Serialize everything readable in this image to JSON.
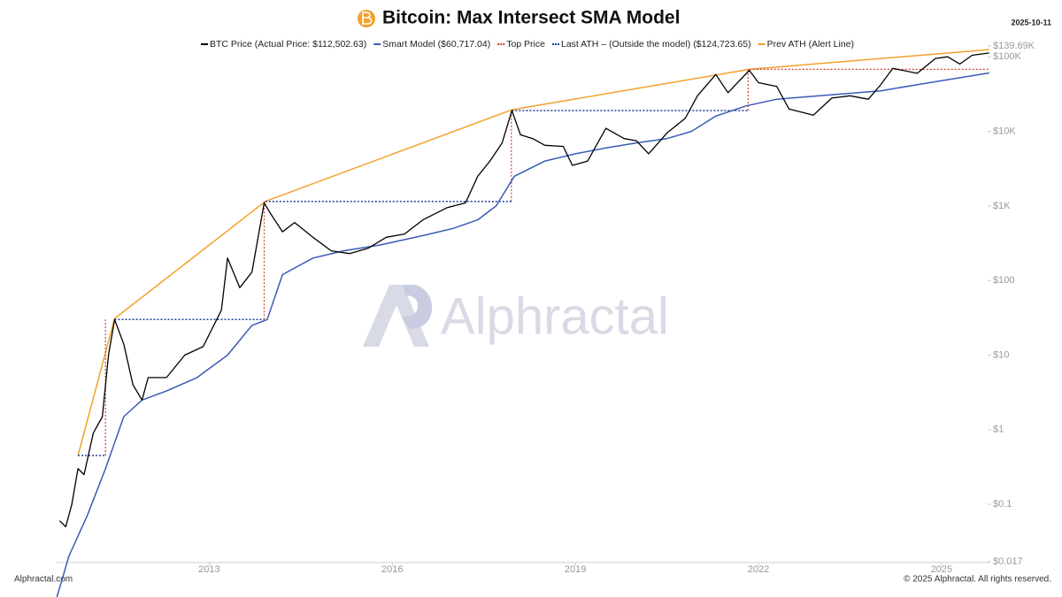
{
  "chart_data": {
    "type": "line",
    "title": "Bitcoin: Max Intersect SMA Model",
    "date": "2025-10-11",
    "source": "Alphractal.com",
    "copyright": "© 2025 Alphractal. All rights reserved.",
    "watermark": "Alphractal",
    "log_y": true,
    "grid": false,
    "xlim": [
      2010.5,
      2025.9
    ],
    "xticks": [
      2013,
      2016,
      2019,
      2022,
      2025
    ],
    "ylim": [
      0.017,
      139690
    ],
    "yticks": [
      {
        "value": 0.017,
        "label": "$0.017"
      },
      {
        "value": 0.1,
        "label": "$0.1"
      },
      {
        "value": 1,
        "label": "$1"
      },
      {
        "value": 10,
        "label": "$10"
      },
      {
        "value": 100,
        "label": "$100"
      },
      {
        "value": 1000,
        "label": "$1K"
      },
      {
        "value": 10000,
        "label": "$10K"
      },
      {
        "value": 100000,
        "label": "$100K"
      },
      {
        "value": 139690,
        "label": "$139.69K"
      }
    ],
    "series": [
      {
        "name": "BTC Price (Actual Price: $112,502.63)",
        "color": "#000000",
        "dash": "none",
        "width": 1.3,
        "x": [
          2010.55,
          2010.65,
          2010.75,
          2010.85,
          2010.95,
          2011.1,
          2011.25,
          2011.35,
          2011.45,
          2011.6,
          2011.75,
          2011.9,
          2012.0,
          2012.3,
          2012.6,
          2012.9,
          2013.2,
          2013.3,
          2013.5,
          2013.7,
          2013.9,
          2014.0,
          2014.2,
          2014.4,
          2014.7,
          2015.0,
          2015.3,
          2015.6,
          2015.9,
          2016.2,
          2016.5,
          2016.9,
          2017.2,
          2017.4,
          2017.6,
          2017.8,
          2017.96,
          2018.1,
          2018.3,
          2018.5,
          2018.8,
          2018.95,
          2019.2,
          2019.5,
          2019.8,
          2020.0,
          2020.2,
          2020.5,
          2020.8,
          2021.0,
          2021.3,
          2021.5,
          2021.85,
          2022.0,
          2022.3,
          2022.5,
          2022.9,
          2023.2,
          2023.5,
          2023.8,
          2024.0,
          2024.2,
          2024.6,
          2024.9,
          2025.1,
          2025.3,
          2025.5,
          2025.78
        ],
        "values": [
          0.06,
          0.05,
          0.1,
          0.3,
          0.25,
          0.9,
          1.5,
          10,
          30,
          14,
          4,
          2.5,
          5,
          5,
          10,
          13,
          40,
          200,
          80,
          130,
          1100,
          800,
          450,
          600,
          380,
          250,
          230,
          270,
          380,
          420,
          650,
          950,
          1100,
          2500,
          4000,
          7000,
          19000,
          9000,
          8000,
          6500,
          6300,
          3500,
          4000,
          11000,
          8000,
          7500,
          5000,
          9500,
          15000,
          30000,
          58000,
          33000,
          66000,
          45000,
          40000,
          20000,
          16500,
          28000,
          30000,
          27000,
          42000,
          70000,
          60000,
          95000,
          100000,
          80000,
          105000,
          112502.63
        ]
      },
      {
        "name": "Smart Model ($60,717.04)",
        "color": "#3a5bb5",
        "dash": "none",
        "width": 1.5,
        "x": [
          2010.5,
          2010.7,
          2011.0,
          2011.3,
          2011.6,
          2011.9,
          2012.3,
          2012.8,
          2013.3,
          2013.7,
          2013.95,
          2014.2,
          2014.7,
          2015.2,
          2015.8,
          2016.5,
          2017.0,
          2017.4,
          2017.7,
          2018.0,
          2018.5,
          2019.0,
          2019.5,
          2020.0,
          2020.5,
          2020.9,
          2021.3,
          2021.8,
          2022.3,
          2023.0,
          2024.0,
          2024.8,
          2025.78
        ],
        "values": [
          0.0055,
          0.02,
          0.07,
          0.3,
          1.5,
          2.5,
          3.3,
          5,
          10,
          25,
          30,
          120,
          200,
          250,
          300,
          400,
          500,
          650,
          1000,
          2500,
          4000,
          5000,
          6000,
          7000,
          8000,
          10000,
          16000,
          22000,
          27000,
          30000,
          35000,
          45000,
          60717.04
        ]
      },
      {
        "name": "Top Price",
        "color": "#d0402a",
        "dash": "2 2",
        "width": 1.2,
        "x": [
          2011.3,
          2011.3,
          null,
          2013.9,
          2013.9,
          null,
          2017.95,
          2017.95,
          null,
          2021.83,
          2021.83,
          2025.78
        ],
        "values": [
          0.45,
          30,
          null,
          30,
          1150,
          null,
          1150,
          19000,
          null,
          19000,
          68000,
          68000
        ]
      },
      {
        "name": "Last ATH – (Outside the model) ($124,723.65)",
        "color": "#1f3c9a",
        "dash": "2 2",
        "width": 1.5,
        "x": [
          2010.85,
          2011.3,
          null,
          2011.45,
          2013.9,
          null,
          2013.92,
          2017.95,
          null,
          2017.96,
          2021.83
        ],
        "values": [
          0.45,
          0.45,
          null,
          30,
          30,
          null,
          1150,
          1150,
          null,
          19000,
          19000
        ]
      },
      {
        "name": "Prev ATH (Alert Line)",
        "color": "#f2a12b",
        "dash": "none",
        "width": 1.5,
        "x": [
          2010.85,
          2011.45,
          2013.92,
          2017.96,
          2021.85,
          2025.78
        ],
        "values": [
          0.45,
          31,
          1150,
          19500,
          68000,
          124723.65
        ]
      }
    ]
  }
}
